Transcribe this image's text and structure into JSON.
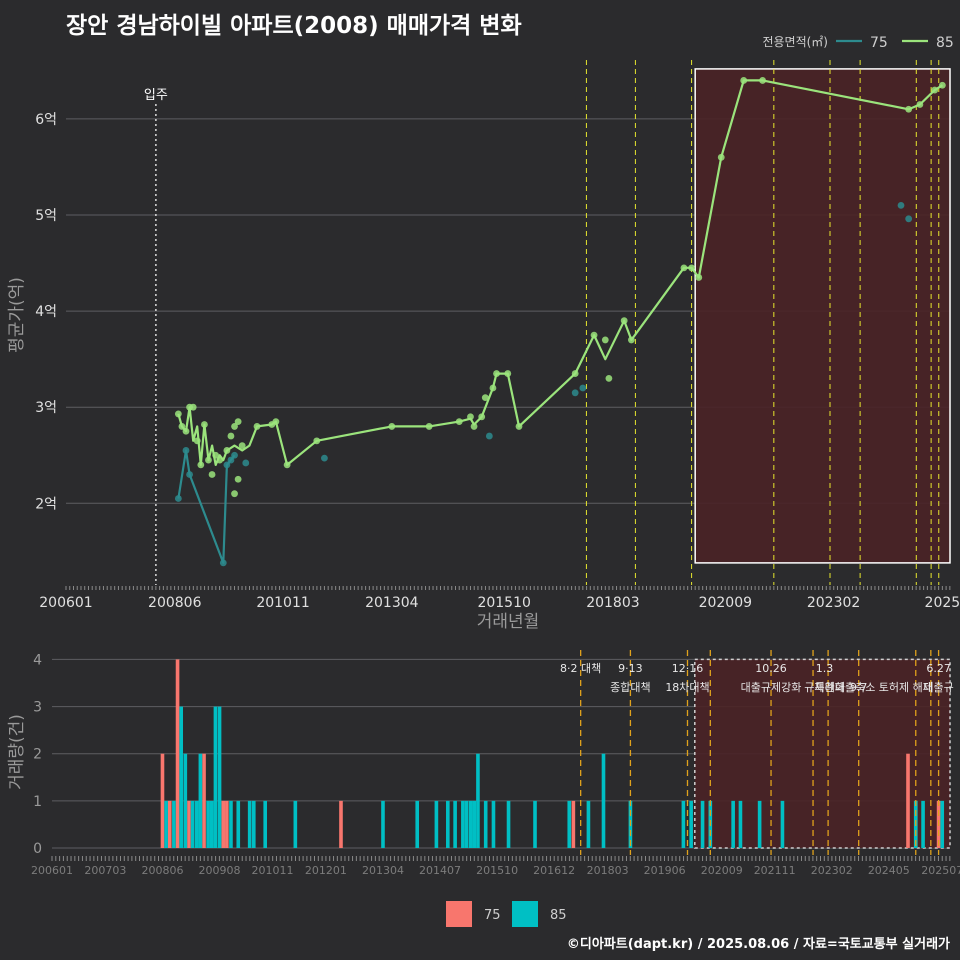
{
  "title": "장안 경남하이빌 아파트(2008) 매매가격 변화",
  "footer": "©디아파트(dapt.kr) / 2025.08.06 / 자료=국토교통부 실거래가",
  "colors": {
    "background": "#2b2b2d",
    "series_75": "#2d8b8e",
    "series_85": "#9be47c",
    "vline": "#e6e62e",
    "vline_bottom": "#e0a21c",
    "highlight_fill": "#4a2226",
    "bar_75": "#f8766d",
    "bar_85": "#00bfc4"
  },
  "chart_data": [
    {
      "type": "line",
      "title": "장안 경남하이빌 아파트(2008) 매매가격 변화",
      "xlabel": "거래년월",
      "ylabel": "평균가(억)",
      "ylim": [
        1.15,
        6.8
      ],
      "xlim": [
        2006.0,
        2025.67
      ],
      "yticks": [
        2,
        3,
        4,
        5,
        6
      ],
      "ytick_labels": [
        "2억",
        "3억",
        "4억",
        "5억",
        "6억"
      ],
      "xtick_values": [
        2006.0,
        2008.42,
        2010.83,
        2013.25,
        2015.75,
        2018.17,
        2020.67,
        2023.08,
        2025.5
      ],
      "xtick_labels": [
        "200601",
        "200806",
        "201011",
        "201304",
        "201510",
        "201803",
        "202009",
        "202302",
        "2025"
      ],
      "legend_title": "전용면적(㎡)",
      "legend": [
        "75",
        "85"
      ],
      "movein": {
        "x": 2008.0,
        "label": "입주"
      },
      "vlines": [
        2017.58,
        2018.67,
        2019.92,
        2021.75,
        2023.0,
        2023.67,
        2024.92,
        2025.25,
        2025.42
      ],
      "highlight": {
        "x0": 2020.0,
        "x1": 2025.67,
        "y0": 1.38,
        "y1": 6.52
      },
      "series": [
        {
          "name": "75",
          "line": [
            [
              2008.5,
              2.05
            ],
            [
              2008.67,
              2.55
            ],
            [
              2008.75,
              2.3
            ],
            [
              2009.5,
              1.38
            ],
            [
              2009.58,
              2.4
            ],
            [
              2009.67,
              2.45
            ],
            [
              2009.75,
              2.5
            ]
          ],
          "points": [
            [
              2008.5,
              2.05
            ],
            [
              2008.67,
              2.55
            ],
            [
              2008.75,
              2.3
            ],
            [
              2009.5,
              1.38
            ],
            [
              2009.58,
              2.4
            ],
            [
              2009.67,
              2.45
            ],
            [
              2009.75,
              2.5
            ],
            [
              2010.0,
              2.42
            ],
            [
              2011.75,
              2.47
            ],
            [
              2015.42,
              2.7
            ],
            [
              2017.33,
              3.15
            ],
            [
              2017.5,
              3.2
            ],
            [
              2024.58,
              5.1
            ],
            [
              2024.75,
              4.96
            ]
          ]
        },
        {
          "name": "85",
          "line": [
            [
              2008.5,
              2.93
            ],
            [
              2008.58,
              2.8
            ],
            [
              2008.67,
              2.75
            ],
            [
              2008.75,
              3.0
            ],
            [
              2008.83,
              2.65
            ],
            [
              2008.92,
              2.8
            ],
            [
              2009.0,
              2.4
            ],
            [
              2009.08,
              2.82
            ],
            [
              2009.17,
              2.45
            ],
            [
              2009.25,
              2.6
            ],
            [
              2009.33,
              2.4
            ],
            [
              2009.42,
              2.5
            ],
            [
              2009.5,
              2.45
            ],
            [
              2009.58,
              2.55
            ],
            [
              2009.75,
              2.6
            ],
            [
              2009.92,
              2.55
            ],
            [
              2010.08,
              2.6
            ],
            [
              2010.25,
              2.8
            ],
            [
              2010.58,
              2.82
            ],
            [
              2010.67,
              2.85
            ],
            [
              2010.92,
              2.4
            ],
            [
              2011.58,
              2.65
            ],
            [
              2013.25,
              2.8
            ],
            [
              2014.08,
              2.8
            ],
            [
              2014.75,
              2.85
            ],
            [
              2015.0,
              2.88
            ],
            [
              2015.08,
              2.82
            ],
            [
              2015.25,
              2.9
            ],
            [
              2015.5,
              3.2
            ],
            [
              2015.58,
              3.35
            ],
            [
              2015.83,
              3.35
            ],
            [
              2016.08,
              2.8
            ],
            [
              2017.33,
              3.35
            ],
            [
              2017.75,
              3.75
            ],
            [
              2018.0,
              3.5
            ],
            [
              2018.42,
              3.9
            ],
            [
              2018.58,
              3.7
            ],
            [
              2019.75,
              4.45
            ],
            [
              2019.92,
              4.45
            ],
            [
              2020.08,
              4.35
            ],
            [
              2020.58,
              5.6
            ],
            [
              2021.08,
              6.4
            ],
            [
              2021.5,
              6.4
            ],
            [
              2024.75,
              6.1
            ],
            [
              2025.0,
              6.15
            ],
            [
              2025.33,
              6.3
            ],
            [
              2025.5,
              6.35
            ]
          ],
          "points": [
            [
              2008.5,
              2.93
            ],
            [
              2008.58,
              2.8
            ],
            [
              2008.67,
              2.75
            ],
            [
              2008.75,
              3.0
            ],
            [
              2008.83,
              3.0
            ],
            [
              2008.92,
              2.65
            ],
            [
              2009.0,
              2.4
            ],
            [
              2009.08,
              2.82
            ],
            [
              2009.17,
              2.45
            ],
            [
              2009.25,
              2.3
            ],
            [
              2009.33,
              2.5
            ],
            [
              2009.42,
              2.45
            ],
            [
              2009.58,
              2.55
            ],
            [
              2009.67,
              2.7
            ],
            [
              2009.75,
              2.8
            ],
            [
              2009.75,
              2.1
            ],
            [
              2009.83,
              2.25
            ],
            [
              2009.83,
              2.85
            ],
            [
              2009.92,
              2.6
            ],
            [
              2010.25,
              2.8
            ],
            [
              2010.58,
              2.82
            ],
            [
              2010.67,
              2.85
            ],
            [
              2010.92,
              2.4
            ],
            [
              2011.58,
              2.65
            ],
            [
              2013.25,
              2.8
            ],
            [
              2014.08,
              2.8
            ],
            [
              2014.75,
              2.85
            ],
            [
              2015.0,
              2.9
            ],
            [
              2015.08,
              2.8
            ],
            [
              2015.25,
              2.9
            ],
            [
              2015.33,
              3.1
            ],
            [
              2015.5,
              3.2
            ],
            [
              2015.58,
              3.35
            ],
            [
              2015.83,
              3.35
            ],
            [
              2016.08,
              2.8
            ],
            [
              2017.33,
              3.35
            ],
            [
              2017.75,
              3.75
            ],
            [
              2018.0,
              3.7
            ],
            [
              2018.08,
              3.3
            ],
            [
              2018.42,
              3.9
            ],
            [
              2018.58,
              3.7
            ],
            [
              2019.75,
              4.45
            ],
            [
              2019.92,
              4.45
            ],
            [
              2020.08,
              4.35
            ],
            [
              2020.58,
              5.6
            ],
            [
              2021.08,
              6.4
            ],
            [
              2021.5,
              6.4
            ],
            [
              2024.75,
              6.1
            ],
            [
              2025.0,
              6.15
            ],
            [
              2025.33,
              6.3
            ],
            [
              2025.5,
              6.35
            ]
          ]
        }
      ]
    },
    {
      "type": "bar",
      "stacked": true,
      "ylabel": "거래량(건)",
      "ylim": [
        0,
        4.2
      ],
      "yticks": [
        0,
        1,
        2,
        3,
        4
      ],
      "xlim": [
        2006.0,
        2025.67
      ],
      "xtick_values": [
        2006.0,
        2007.17,
        2008.42,
        2009.67,
        2010.83,
        2012.0,
        2013.25,
        2014.5,
        2015.75,
        2017.0,
        2018.17,
        2019.42,
        2020.67,
        2021.83,
        2023.08,
        2024.33,
        2025.5
      ],
      "xtick_labels": [
        "200601",
        "200703",
        "200806",
        "200908",
        "201011",
        "201201",
        "201304",
        "201407",
        "201510",
        "201612",
        "201803",
        "201906",
        "202009",
        "202111",
        "202302",
        "202405",
        "202507"
      ],
      "legend": [
        "75",
        "85"
      ],
      "highlight": {
        "x0": 2020.08,
        "x1": 2025.67,
        "y0": 0,
        "y1": 4
      },
      "vlines": [
        2017.58,
        2018.67,
        2019.92,
        2020.42,
        2021.75,
        2022.67,
        2023.0,
        2023.67,
        2024.92,
        2025.25,
        2025.42
      ],
      "policy_labels": [
        {
          "x": 2017.58,
          "date": "8·2 대책",
          "name": ""
        },
        {
          "x": 2018.67,
          "date": "9·13",
          "name": "종합대책"
        },
        {
          "x": 2019.92,
          "date": "12·16",
          "name": "18차대책"
        },
        {
          "x": 2021.75,
          "date": "10.26",
          "name": "대출규제강화"
        },
        {
          "x": 2022.92,
          "date": "1.3",
          "name": "규제완화"
        },
        {
          "x": 2023.67,
          "date": "",
          "name": "9.7"
        },
        {
          "x": 2024.0,
          "date": "",
          "name": "특례대출축소 토허제 해제"
        },
        {
          "x": 2025.42,
          "date": "6.27",
          "name": "대출규"
        }
      ],
      "series": [
        {
          "name": "75",
          "points": [
            [
              2008.42,
              2
            ],
            [
              2008.58,
              1
            ],
            [
              2008.75,
              4
            ],
            [
              2009.0,
              1
            ],
            [
              2009.33,
              2
            ],
            [
              2009.75,
              1
            ],
            [
              2009.83,
              1
            ],
            [
              2012.33,
              1
            ],
            [
              2017.42,
              1
            ],
            [
              2024.75,
              2
            ],
            [
              2024.92,
              1
            ],
            [
              2025.42,
              1
            ]
          ]
        },
        {
          "name": "85",
          "points": [
            [
              2008.5,
              1
            ],
            [
              2008.67,
              1
            ],
            [
              2008.83,
              3
            ],
            [
              2008.92,
              2
            ],
            [
              2009.08,
              1
            ],
            [
              2009.17,
              1
            ],
            [
              2009.25,
              2
            ],
            [
              2009.42,
              1
            ],
            [
              2009.5,
              1
            ],
            [
              2009.58,
              3
            ],
            [
              2009.67,
              3
            ],
            [
              2009.92,
              1
            ],
            [
              2010.08,
              1
            ],
            [
              2010.33,
              1
            ],
            [
              2010.42,
              1
            ],
            [
              2010.67,
              1
            ],
            [
              2011.33,
              1
            ],
            [
              2013.25,
              1
            ],
            [
              2014.0,
              1
            ],
            [
              2014.42,
              1
            ],
            [
              2014.67,
              1
            ],
            [
              2014.83,
              1
            ],
            [
              2015.0,
              1
            ],
            [
              2015.08,
              1
            ],
            [
              2015.17,
              1
            ],
            [
              2015.25,
              1
            ],
            [
              2015.33,
              2
            ],
            [
              2015.5,
              1
            ],
            [
              2015.67,
              1
            ],
            [
              2016.0,
              1
            ],
            [
              2016.58,
              1
            ],
            [
              2017.33,
              1
            ],
            [
              2017.75,
              1
            ],
            [
              2018.08,
              2
            ],
            [
              2018.67,
              1
            ],
            [
              2019.83,
              1
            ],
            [
              2020.0,
              1
            ],
            [
              2020.25,
              1
            ],
            [
              2020.42,
              1
            ],
            [
              2020.92,
              1
            ],
            [
              2021.08,
              1
            ],
            [
              2021.5,
              1
            ],
            [
              2022.0,
              1
            ],
            [
              2024.92,
              1
            ],
            [
              2025.08,
              1
            ],
            [
              2025.5,
              1
            ]
          ]
        }
      ]
    }
  ]
}
